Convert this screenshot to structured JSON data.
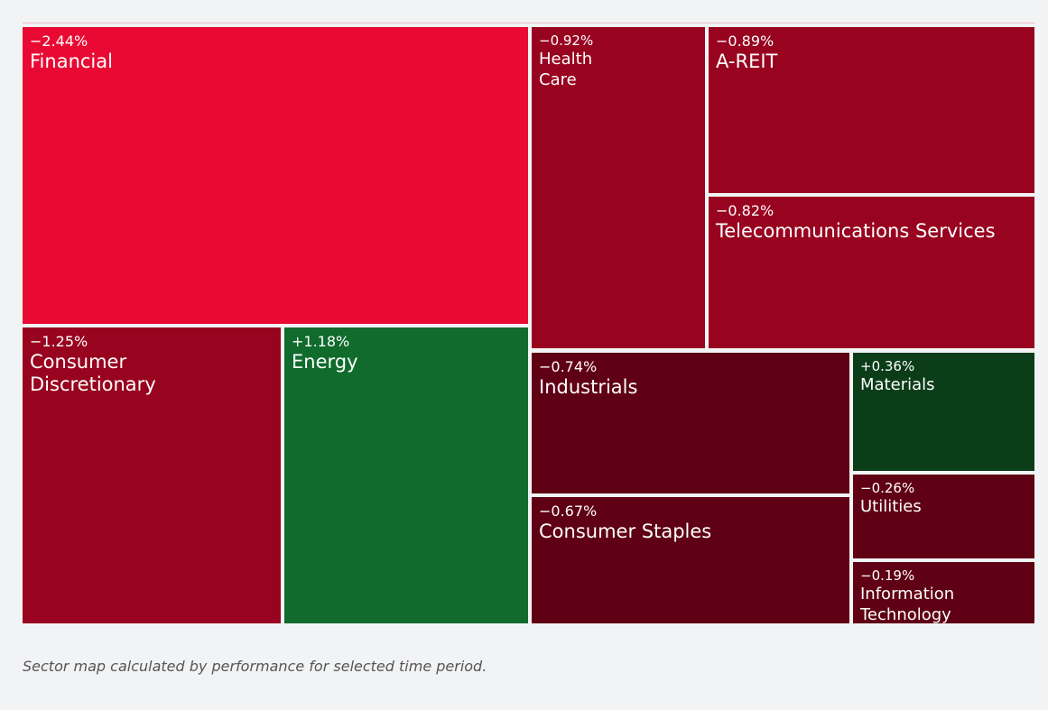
{
  "chart_data": {
    "type": "treemap",
    "categories": [
      "Financial",
      "Consumer Discretionary",
      "Energy",
      "Health Care",
      "A-REIT",
      "Telecommunications Services",
      "Industrials",
      "Consumer Staples",
      "Materials",
      "Utilities",
      "Information Technology"
    ],
    "values": [
      -2.44,
      -1.25,
      1.18,
      -0.92,
      -0.89,
      -0.82,
      -0.74,
      -0.67,
      0.36,
      -0.26,
      -0.19
    ],
    "value_labels": [
      "−2.44%",
      "−1.25%",
      "+1.18%",
      "−0.92%",
      "−0.89%",
      "−0.82%",
      "−0.74%",
      "−0.67%",
      "+0.36%",
      "−0.26%",
      "−0.19%"
    ],
    "colors": [
      "#e80a33",
      "#98031f",
      "#106b2c",
      "#98031f",
      "#98031f",
      "#98031f",
      "#5f0014",
      "#5f0014",
      "#0b3d18",
      "#5f0014",
      "#5f0014"
    ],
    "caption": "Sector map calculated by performance for selected time period."
  }
}
